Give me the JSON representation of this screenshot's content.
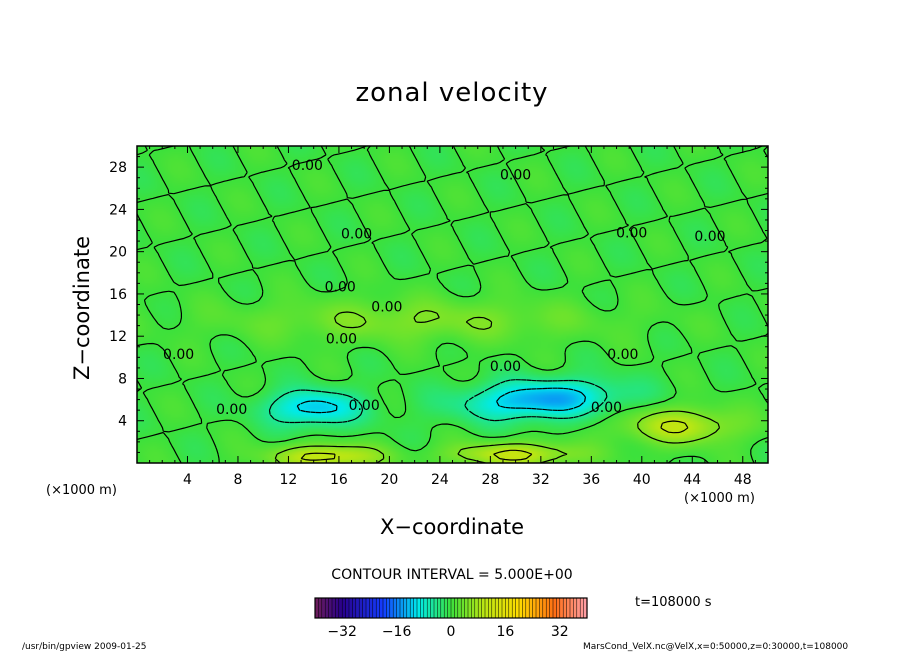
{
  "chart_data": {
    "type": "heatmap",
    "title": "zonal velocity",
    "xlabel": "X−coordinate",
    "ylabel": "Z−coordinate",
    "x_unit_left": "(×1000 m)",
    "x_unit_right": "(×1000 m)",
    "x_ticks": [
      "4",
      "8",
      "12",
      "16",
      "20",
      "24",
      "28",
      "32",
      "36",
      "40",
      "44",
      "48"
    ],
    "y_ticks": [
      "4",
      "8",
      "12",
      "16",
      "20",
      "24",
      "28"
    ],
    "xlim": [
      0,
      50
    ],
    "ylim": [
      0,
      30
    ],
    "contour_interval_text": "CONTOUR INTERVAL = 5.000E+00",
    "contour_label": "0.00",
    "contour_labels": [
      {
        "text": "0.00",
        "x": 13.5,
        "z": 28.2
      },
      {
        "text": "0.00",
        "x": 30.0,
        "z": 27.3
      },
      {
        "text": "0.00",
        "x": 17.4,
        "z": 21.7
      },
      {
        "text": "0.00",
        "x": 39.2,
        "z": 21.8
      },
      {
        "text": "0.00",
        "x": 45.4,
        "z": 21.5
      },
      {
        "text": "0.00",
        "x": 16.1,
        "z": 16.7
      },
      {
        "text": "0.00",
        "x": 19.8,
        "z": 14.8
      },
      {
        "text": "0.00",
        "x": 16.2,
        "z": 11.8
      },
      {
        "text": "0.00",
        "x": 3.3,
        "z": 10.3
      },
      {
        "text": "0.00",
        "x": 29.2,
        "z": 9.2
      },
      {
        "text": "0.00",
        "x": 38.5,
        "z": 10.3
      },
      {
        "text": "0.00",
        "x": 7.5,
        "z": 5.1
      },
      {
        "text": "0.00",
        "x": 18.0,
        "z": 5.5
      },
      {
        "text": "0.00",
        "x": 37.2,
        "z": 5.3
      }
    ],
    "colorbar_ticks": [
      -32,
      -16,
      0,
      16,
      32
    ],
    "colorbar_range": [
      -40,
      40
    ],
    "time_label": "t=108000  s",
    "field_features": [
      {
        "kind": "min",
        "x": 14.0,
        "z": 5.2,
        "sx": 2.6,
        "sz": 1.2,
        "amp": -12
      },
      {
        "kind": "min",
        "x": 32.0,
        "z": 6.0,
        "sx": 4.2,
        "sz": 1.3,
        "amp": -14,
        "tilt": 0.6
      },
      {
        "kind": "max",
        "x": 15.0,
        "z": 0.6,
        "sx": 3.0,
        "sz": 0.8,
        "amp": 12
      },
      {
        "kind": "max",
        "x": 30.0,
        "z": 0.8,
        "sx": 3.5,
        "sz": 0.8,
        "amp": 11
      },
      {
        "kind": "max",
        "x": 43.0,
        "z": 3.5,
        "sx": 3.2,
        "sz": 1.2,
        "amp": 10
      },
      {
        "kind": "max",
        "x": 22.0,
        "z": 13.5,
        "sx": 10.0,
        "sz": 1.4,
        "amp": 5
      }
    ]
  },
  "footer": {
    "left": "/usr/bin/gpview   2009-01-25",
    "right": "MarsCond_VelX.nc@VelX,x=0:50000,z=0:30000,t=108000"
  },
  "colors": {
    "background_field": "#33e633",
    "contour": "#000000"
  }
}
